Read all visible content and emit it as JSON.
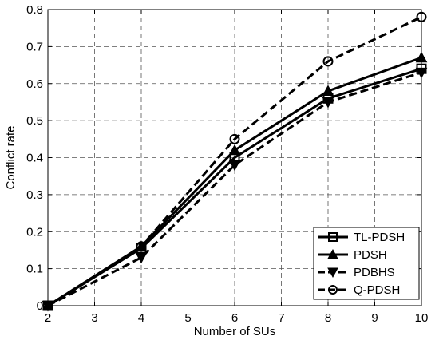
{
  "chart_data": {
    "type": "line",
    "xlabel": "Number of SUs",
    "ylabel": "Conflict rate",
    "xlim": [
      2,
      10
    ],
    "ylim": [
      0,
      0.8
    ],
    "x_ticks": [
      2,
      3,
      4,
      5,
      6,
      7,
      8,
      9,
      10
    ],
    "y_ticks": [
      0,
      0.1,
      0.2,
      0.3,
      0.4,
      0.5,
      0.6,
      0.7,
      0.8
    ],
    "y_tick_labels": [
      "0",
      "0.1",
      "0.2",
      "0.3",
      "0.4",
      "0.5",
      "0.6",
      "0.7",
      "0.8"
    ],
    "grid": true,
    "legend_position": "bottom-right",
    "x": [
      2,
      4,
      6,
      8,
      10
    ],
    "series": [
      {
        "name": "TL-PDSH",
        "values": [
          0,
          0.155,
          0.4,
          0.56,
          0.64
        ],
        "marker": "square",
        "dash": "solid",
        "color": "#000000"
      },
      {
        "name": "PDSH",
        "values": [
          0,
          0.16,
          0.42,
          0.58,
          0.67
        ],
        "marker": "triangle-up",
        "dash": "solid",
        "color": "#000000"
      },
      {
        "name": "PDBHS",
        "values": [
          0,
          0.13,
          0.38,
          0.55,
          0.63
        ],
        "marker": "triangle-down",
        "dash": "dashed",
        "color": "#000000"
      },
      {
        "name": "Q-PDSH",
        "values": [
          0,
          0.16,
          0.45,
          0.66,
          0.78
        ],
        "marker": "circle",
        "dash": "dashed",
        "color": "#000000"
      }
    ]
  }
}
